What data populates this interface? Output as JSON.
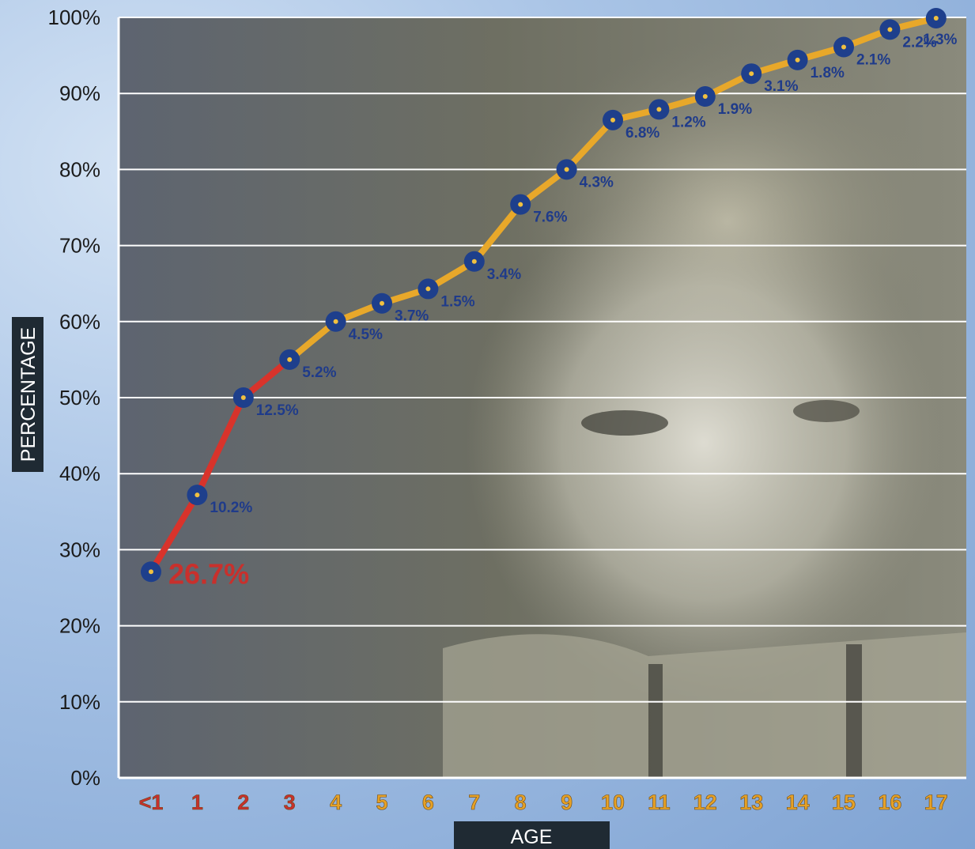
{
  "chart_data": {
    "type": "line",
    "xlabel": "AGE",
    "ylabel": "PERCENTAGE",
    "categories": [
      "<1",
      "1",
      "2",
      "3",
      "4",
      "5",
      "6",
      "7",
      "8",
      "9",
      "10",
      "11",
      "12",
      "13",
      "14",
      "15",
      "16",
      "17"
    ],
    "values": [
      27.1,
      37.2,
      50.0,
      55.0,
      60.0,
      62.4,
      64.3,
      67.9,
      75.4,
      80.0,
      86.5,
      87.9,
      89.6,
      92.6,
      94.4,
      96.1,
      98.4,
      99.9
    ],
    "point_labels": [
      "26.7%",
      "10.2%",
      "12.5%",
      "5.2%",
      "4.5%",
      "3.7%",
      "1.5%",
      "3.4%",
      "7.6%",
      "4.3%",
      "6.8%",
      "1.2%",
      "1.9%",
      "3.1%",
      "1.8%",
      "2.1%",
      "2.2%",
      "1.3%"
    ],
    "y_ticks": [
      "0%",
      "10%",
      "20%",
      "30%",
      "40%",
      "50%",
      "60%",
      "70%",
      "80%",
      "90%",
      "100%"
    ],
    "ylim": [
      0,
      100
    ],
    "grid": true,
    "highlight_ages_through_index": 3,
    "colors": {
      "highlight_line": "#d8332b",
      "main_line": "#e8a82a",
      "marker": "#1e3f8c",
      "marker_center": "#f0c040",
      "highlight_tick": "#c8302c",
      "main_tick": "#e6a126",
      "gridline": "#ffffff",
      "label_box": "#1f2a33"
    }
  }
}
